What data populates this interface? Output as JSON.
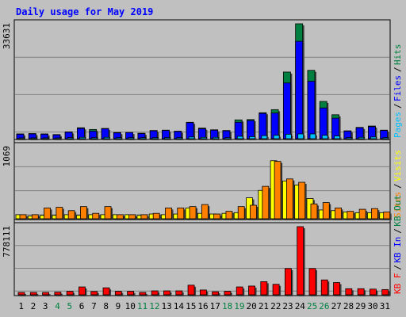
{
  "window": {
    "title": "Daily usage for May 2019"
  },
  "colors": {
    "background": "#c0c0c0",
    "title": "#0000ff",
    "hits": "#008040",
    "files": "#0000ff",
    "pages": "#00c0ff",
    "visits": "#ffff00",
    "sites": "#ff8000",
    "kb_in": "#0000ff",
    "kb_out": "#008040",
    "kbf": "#ff0000",
    "weekend_label": "#008040"
  },
  "chart_data": [
    {
      "type": "bar",
      "panel": "top",
      "ymax_label": "33631",
      "ymax": 33631,
      "legend": [
        "Pages",
        "Files",
        "Hits"
      ],
      "categories": [
        "1",
        "2",
        "3",
        "4",
        "5",
        "6",
        "7",
        "8",
        "9",
        "10",
        "11",
        "12",
        "13",
        "14",
        "15",
        "16",
        "17",
        "18",
        "19",
        "20",
        "21",
        "22",
        "23",
        "24",
        "25",
        "26",
        "27",
        "28",
        "29",
        "30",
        "31"
      ],
      "weekend_days": [
        "4",
        "5",
        "11",
        "12",
        "18",
        "19",
        "25",
        "26"
      ],
      "series": [
        {
          "name": "Hits",
          "values": [
            1400,
            1500,
            1400,
            1200,
            2000,
            3200,
            2700,
            3000,
            1800,
            1800,
            1600,
            2400,
            2500,
            2200,
            4800,
            3100,
            2600,
            2400,
            5500,
            5600,
            7600,
            8500,
            19500,
            33631,
            20000,
            10900,
            7000,
            2300,
            3300,
            3700,
            2500
          ]
        },
        {
          "name": "Files",
          "values": [
            1300,
            1400,
            1300,
            1100,
            1900,
            3000,
            2200,
            2900,
            1700,
            1800,
            1500,
            2300,
            2400,
            2100,
            4700,
            2900,
            2500,
            2300,
            4800,
            5300,
            7400,
            7500,
            16300,
            28500,
            16800,
            9000,
            6000,
            2200,
            3200,
            3500,
            2400
          ]
        },
        {
          "name": "Pages",
          "values": [
            200,
            200,
            200,
            200,
            300,
            400,
            300,
            400,
            300,
            300,
            300,
            300,
            300,
            300,
            500,
            400,
            400,
            300,
            700,
            600,
            900,
            1000,
            1300,
            1400,
            1400,
            1000,
            800,
            300,
            400,
            500,
            300
          ]
        }
      ]
    },
    {
      "type": "bar",
      "panel": "middle",
      "ymax_label": "1069",
      "ymax": 1069,
      "legend": [
        "Sites",
        "Visits"
      ],
      "series": [
        {
          "name": "Visits",
          "values": [
            60,
            40,
            50,
            50,
            60,
            50,
            60,
            60,
            60,
            60,
            50,
            70,
            60,
            70,
            160,
            80,
            70,
            80,
            90,
            310,
            420,
            860,
            560,
            500,
            300,
            130,
            120,
            100,
            90,
            90,
            90
          ]
        },
        {
          "name": "Sites",
          "values": [
            60,
            60,
            160,
            170,
            120,
            180,
            80,
            180,
            60,
            60,
            60,
            80,
            160,
            160,
            180,
            210,
            70,
            110,
            180,
            200,
            480,
            850,
            590,
            540,
            220,
            240,
            160,
            110,
            140,
            150,
            100
          ]
        }
      ]
    },
    {
      "type": "bar",
      "panel": "bottom",
      "ymax_label": "778111",
      "ymax": 778111,
      "legend": [
        "KB F",
        "KB In",
        "KB Out"
      ],
      "series": [
        {
          "name": "KB F",
          "values": [
            27000,
            27000,
            27000,
            30000,
            40000,
            90000,
            38000,
            80000,
            40000,
            40000,
            27000,
            45000,
            45000,
            45000,
            110000,
            55000,
            35000,
            40000,
            90000,
            100000,
            150000,
            120000,
            300000,
            778111,
            300000,
            170000,
            140000,
            70000,
            70000,
            65000,
            60000
          ]
        }
      ]
    }
  ]
}
